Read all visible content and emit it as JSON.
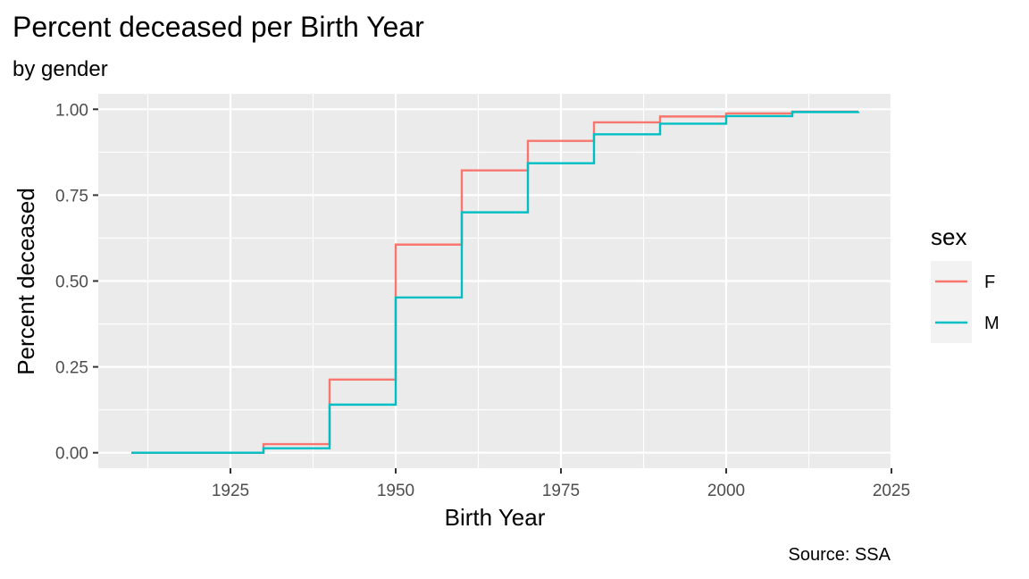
{
  "chart_data": {
    "type": "line",
    "step": "post",
    "title": "Percent deceased per Birth Year",
    "subtitle": "by gender",
    "caption": "Source: SSA",
    "xlabel": "Birth Year",
    "ylabel": "Percent deceased",
    "xlim": [
      1905,
      2025
    ],
    "ylim": [
      -0.045,
      1.045
    ],
    "x_ticks": [
      1925,
      1950,
      1975,
      2000,
      2025
    ],
    "y_ticks": [
      0,
      0.25,
      0.5,
      0.75,
      1
    ],
    "y_tick_labels": [
      "0.00",
      "0.25",
      "0.50",
      "0.75",
      "1.00"
    ],
    "grid": true,
    "panel_background": "#ebebeb",
    "legend": {
      "title": "sex",
      "position": "right"
    },
    "series": [
      {
        "name": "F",
        "color": "#f8766d",
        "x": [
          1910,
          1920,
          1930,
          1940,
          1950,
          1960,
          1970,
          1980,
          1990,
          2000,
          2010,
          2020
        ],
        "y": [
          0.0,
          0.0,
          0.025,
          0.213,
          0.606,
          0.822,
          0.908,
          0.962,
          0.979,
          0.988,
          0.993,
          0.993
        ]
      },
      {
        "name": "M",
        "color": "#00bfc4",
        "x": [
          1910,
          1920,
          1930,
          1940,
          1950,
          1960,
          1970,
          1980,
          1990,
          2000,
          2010,
          2020
        ],
        "y": [
          0.0,
          0.0,
          0.013,
          0.14,
          0.452,
          0.7,
          0.843,
          0.927,
          0.958,
          0.98,
          0.992,
          0.993
        ]
      }
    ]
  }
}
